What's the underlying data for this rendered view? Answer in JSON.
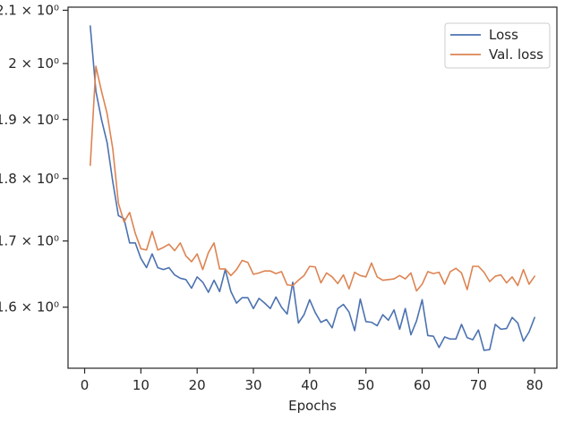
{
  "chart_data": {
    "type": "line",
    "title": "",
    "xlabel": "Epochs",
    "ylabel": "",
    "yscale": "log",
    "xlim": [
      -2.95,
      83.95
    ],
    "ylim": [
      1.513,
      2.106
    ],
    "grid": false,
    "legend_position": "top-right",
    "xticks": [
      {
        "value": 0,
        "label": "0"
      },
      {
        "value": 10,
        "label": "10"
      },
      {
        "value": 20,
        "label": "20"
      },
      {
        "value": 30,
        "label": "30"
      },
      {
        "value": 40,
        "label": "40"
      },
      {
        "value": 50,
        "label": "50"
      },
      {
        "value": 60,
        "label": "60"
      },
      {
        "value": 70,
        "label": "70"
      },
      {
        "value": 80,
        "label": "80"
      }
    ],
    "yticks": [
      {
        "value": 1.6,
        "label": "1.6 × 10⁰"
      },
      {
        "value": 1.7,
        "label": "1.7 × 10⁰"
      },
      {
        "value": 1.8,
        "label": "1.8 × 10⁰"
      },
      {
        "value": 1.9,
        "label": "1.9 × 10⁰"
      },
      {
        "value": 2.0,
        "label": "2 × 10⁰"
      },
      {
        "value": 2.1,
        "label": "2.1 × 10⁰"
      }
    ],
    "x": [
      1,
      2,
      3,
      4,
      5,
      6,
      7,
      8,
      9,
      10,
      11,
      12,
      13,
      14,
      15,
      16,
      17,
      18,
      19,
      20,
      21,
      22,
      23,
      24,
      25,
      26,
      27,
      28,
      29,
      30,
      31,
      32,
      33,
      34,
      35,
      36,
      37,
      38,
      39,
      40,
      41,
      42,
      43,
      44,
      45,
      46,
      47,
      48,
      49,
      50,
      51,
      52,
      53,
      54,
      55,
      56,
      57,
      58,
      59,
      60,
      61,
      62,
      63,
      64,
      65,
      66,
      67,
      68,
      69,
      70,
      71,
      72,
      73,
      74,
      75,
      76,
      77,
      78,
      79,
      80
    ],
    "series": [
      {
        "name": "Loss",
        "color": "#4c72b0",
        "values": [
          2.07,
          1.95,
          1.9,
          1.86,
          1.795,
          1.74,
          1.735,
          1.697,
          1.697,
          1.673,
          1.659,
          1.68,
          1.659,
          1.656,
          1.659,
          1.648,
          1.643,
          1.641,
          1.628,
          1.645,
          1.637,
          1.622,
          1.64,
          1.623,
          1.656,
          1.623,
          1.606,
          1.614,
          1.614,
          1.598,
          1.613,
          1.606,
          1.598,
          1.615,
          1.6,
          1.59,
          1.637,
          1.577,
          1.589,
          1.611,
          1.592,
          1.578,
          1.582,
          1.57,
          1.598,
          1.604,
          1.593,
          1.566,
          1.612,
          1.579,
          1.578,
          1.573,
          1.589,
          1.581,
          1.596,
          1.568,
          1.598,
          1.56,
          1.58,
          1.611,
          1.559,
          1.558,
          1.542,
          1.557,
          1.554,
          1.554,
          1.575,
          1.556,
          1.553,
          1.567,
          1.538,
          1.539,
          1.575,
          1.568,
          1.569,
          1.585,
          1.577,
          1.551,
          1.564,
          1.585
        ]
      },
      {
        "name": "Val. loss",
        "color": "#dd8452",
        "values": [
          1.822,
          1.995,
          1.95,
          1.91,
          1.85,
          1.76,
          1.73,
          1.745,
          1.712,
          1.688,
          1.686,
          1.715,
          1.686,
          1.69,
          1.695,
          1.685,
          1.697,
          1.677,
          1.668,
          1.68,
          1.656,
          1.682,
          1.697,
          1.657,
          1.657,
          1.647,
          1.656,
          1.67,
          1.667,
          1.649,
          1.651,
          1.654,
          1.654,
          1.65,
          1.653,
          1.633,
          1.632,
          1.64,
          1.647,
          1.661,
          1.66,
          1.636,
          1.651,
          1.645,
          1.635,
          1.648,
          1.627,
          1.652,
          1.647,
          1.645,
          1.666,
          1.645,
          1.64,
          1.641,
          1.642,
          1.647,
          1.642,
          1.651,
          1.624,
          1.634,
          1.653,
          1.65,
          1.652,
          1.634,
          1.653,
          1.658,
          1.651,
          1.626,
          1.661,
          1.661,
          1.652,
          1.638,
          1.646,
          1.648,
          1.636,
          1.645,
          1.632,
          1.656,
          1.634,
          1.646
        ]
      }
    ]
  }
}
